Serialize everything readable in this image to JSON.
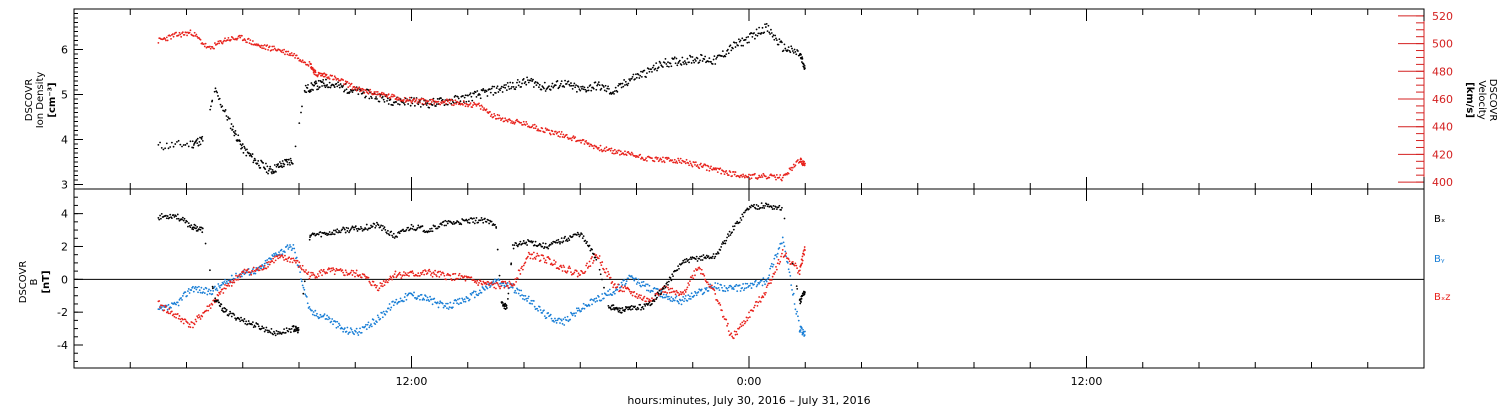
{
  "colors": {
    "black": "#000000",
    "red": "#e8221c",
    "blue": "#1a7fd6",
    "axis_red": "#d42020"
  },
  "xaxis": {
    "label": "hours:minutes, July 30, 2016 – July 31, 2016",
    "range_hours": [
      0,
      48
    ],
    "tick_labels": [
      {
        "label": "12:00",
        "hour": 12
      },
      {
        "label": "0:00",
        "hour": 24
      },
      {
        "label": "12:00",
        "hour": 36
      }
    ],
    "unit": "hours since 2016-07-30 00:00"
  },
  "chart_data": [
    {
      "type": "scatter",
      "panel": "top",
      "ylabel_left": [
        "DSCOVR",
        "Ion Density"
      ],
      "ylabel_left_unit": "[cm⁻³]",
      "ylabel_right": [
        "DSCOVR",
        "Velocity"
      ],
      "ylabel_right_unit": "[km/s]",
      "ylim_left": [
        2.9,
        6.9
      ],
      "ylim_right": [
        395,
        525
      ],
      "yticks_left": [
        3,
        4,
        5,
        6
      ],
      "yticks_right": [
        400,
        420,
        440,
        460,
        480,
        500,
        520
      ],
      "grid": false,
      "series": [
        {
          "axis": "left",
          "color": "black",
          "x": [
            3.0,
            4.2,
            4.6,
            5.0,
            5.6,
            6.0,
            6.5,
            7.0,
            7.4,
            7.8,
            8.2,
            8.6,
            9.0,
            9.6,
            10.2,
            10.8,
            11.4,
            12.0,
            12.6,
            13.2,
            13.8,
            14.4,
            15.0,
            15.6,
            16.2,
            16.8,
            17.4,
            18.0,
            18.6,
            19.2,
            19.8,
            20.4,
            21.0,
            21.6,
            22.2,
            22.8,
            23.4,
            24.0,
            24.6,
            25.2,
            25.8,
            26.0
          ],
          "y": [
            3.85,
            3.9,
            4.0,
            5.1,
            4.3,
            3.8,
            3.5,
            3.3,
            3.45,
            3.55,
            5.1,
            5.2,
            5.25,
            5.15,
            5.05,
            4.95,
            4.85,
            4.85,
            4.8,
            4.85,
            4.9,
            5.0,
            5.1,
            5.2,
            5.3,
            5.15,
            5.25,
            5.1,
            5.2,
            5.05,
            5.35,
            5.5,
            5.7,
            5.75,
            5.8,
            5.75,
            6.05,
            6.25,
            6.5,
            6.05,
            5.9,
            5.55
          ]
        },
        {
          "axis": "right",
          "color": "red",
          "x": [
            3.0,
            3.6,
            4.2,
            4.8,
            5.4,
            6.0,
            6.6,
            7.2,
            7.8,
            8.4,
            8.6,
            9.0,
            9.6,
            10.2,
            10.8,
            11.4,
            12.0,
            12.6,
            13.2,
            13.8,
            14.4,
            15.0,
            15.6,
            16.2,
            16.8,
            17.4,
            18.0,
            18.6,
            19.2,
            19.8,
            20.4,
            21.0,
            21.6,
            22.2,
            22.8,
            23.4,
            24.0,
            24.6,
            25.2,
            25.8,
            26.0
          ],
          "y": [
            502,
            506,
            508,
            496,
            503,
            504,
            498,
            496,
            492,
            485,
            478,
            477,
            472,
            466,
            464,
            461,
            459,
            458,
            458,
            457,
            455,
            447,
            444,
            441,
            437,
            434,
            430,
            425,
            422,
            420,
            417,
            416,
            415,
            412,
            409,
            406,
            404,
            404,
            403,
            416,
            412
          ]
        }
      ]
    },
    {
      "type": "scatter",
      "panel": "bottom",
      "ylabel_left": [
        "DSCOVR",
        "B"
      ],
      "ylabel_left_unit": "[nT]",
      "ylim": [
        -5.4,
        5.5
      ],
      "yticks": [
        -4,
        -2,
        0,
        2,
        4
      ],
      "zero_line": true,
      "grid": false,
      "series": [
        {
          "name": "Bₓ",
          "color": "black",
          "x": [
            3.0,
            3.6,
            4.2,
            4.6,
            5.0,
            5.4,
            6.0,
            6.6,
            7.2,
            7.8,
            8.0,
            8.4,
            9.0,
            9.6,
            10.2,
            10.8,
            11.4,
            12.0,
            12.6,
            13.2,
            13.8,
            14.4,
            15.0,
            15.2,
            15.4,
            15.6,
            16.2,
            16.8,
            17.4,
            18.0,
            18.6,
            19.0,
            19.4,
            19.8,
            20.4,
            21.0,
            21.6,
            22.2,
            22.8,
            23.4,
            24.0,
            24.6,
            25.2,
            25.8,
            26.0
          ],
          "y": [
            3.8,
            3.9,
            3.2,
            3.0,
            -1.2,
            -2.0,
            -2.5,
            -2.9,
            -3.3,
            -3.0,
            -3.1,
            2.7,
            2.8,
            3.0,
            3.1,
            3.3,
            2.6,
            3.2,
            3.0,
            3.4,
            3.5,
            3.6,
            3.4,
            -1.5,
            -1.7,
            2.0,
            2.3,
            2.0,
            2.4,
            2.8,
            1.2,
            -1.6,
            -1.9,
            -1.8,
            -1.6,
            -0.5,
            1.0,
            1.3,
            1.4,
            3.0,
            4.4,
            4.5,
            4.3,
            -1.4,
            -0.7
          ]
        },
        {
          "name": "Bᵧ",
          "color": "blue",
          "x": [
            3.0,
            3.6,
            4.2,
            4.8,
            5.4,
            6.0,
            6.6,
            7.2,
            7.8,
            8.4,
            9.0,
            9.6,
            10.2,
            10.8,
            11.4,
            12.0,
            12.6,
            13.2,
            13.8,
            14.4,
            15.0,
            15.6,
            16.2,
            16.8,
            17.4,
            18.0,
            18.6,
            19.2,
            19.8,
            20.4,
            21.0,
            21.6,
            22.2,
            22.8,
            23.4,
            24.0,
            24.6,
            25.2,
            25.8,
            26.0
          ],
          "y": [
            -1.9,
            -1.6,
            -0.5,
            -0.8,
            -0.2,
            0.4,
            0.6,
            1.6,
            2.0,
            -2.0,
            -2.3,
            -3.1,
            -3.2,
            -2.4,
            -1.4,
            -0.9,
            -1.2,
            -1.7,
            -1.3,
            -0.8,
            -0.1,
            -0.5,
            -1.3,
            -2.2,
            -2.6,
            -1.8,
            -1.2,
            -0.7,
            0.1,
            -0.5,
            -1.0,
            -1.3,
            -0.8,
            -0.4,
            -0.6,
            -0.4,
            -0.1,
            2.5,
            -3.0,
            -3.4
          ]
        },
        {
          "name": "Bₓz",
          "color": "red",
          "x": [
            3.0,
            3.6,
            4.2,
            4.8,
            5.4,
            6.0,
            6.6,
            7.2,
            7.8,
            8.4,
            9.0,
            9.6,
            10.2,
            10.8,
            11.4,
            12.0,
            12.6,
            13.2,
            13.8,
            14.4,
            15.0,
            15.6,
            16.2,
            16.8,
            17.4,
            18.0,
            18.6,
            19.2,
            19.8,
            20.4,
            21.0,
            21.6,
            22.2,
            22.8,
            23.4,
            24.0,
            24.6,
            25.2,
            25.8,
            26.0
          ],
          "y": [
            -1.5,
            -2.2,
            -2.8,
            -1.7,
            -0.5,
            0.4,
            0.6,
            1.3,
            1.2,
            0.2,
            0.5,
            0.4,
            0.3,
            -0.5,
            0.3,
            0.3,
            0.4,
            0.2,
            0.1,
            -0.2,
            -0.4,
            -0.3,
            1.5,
            1.2,
            0.7,
            0.3,
            1.5,
            -0.4,
            -0.8,
            -1.3,
            -0.6,
            -1.0,
            0.8,
            -0.9,
            -3.6,
            -2.2,
            -0.7,
            1.6,
            0.5,
            2.0
          ]
        }
      ],
      "legend": {
        "placement": "right",
        "items": [
          "Bₓ",
          "Bᵧ",
          "Bₓz"
        ]
      }
    }
  ]
}
